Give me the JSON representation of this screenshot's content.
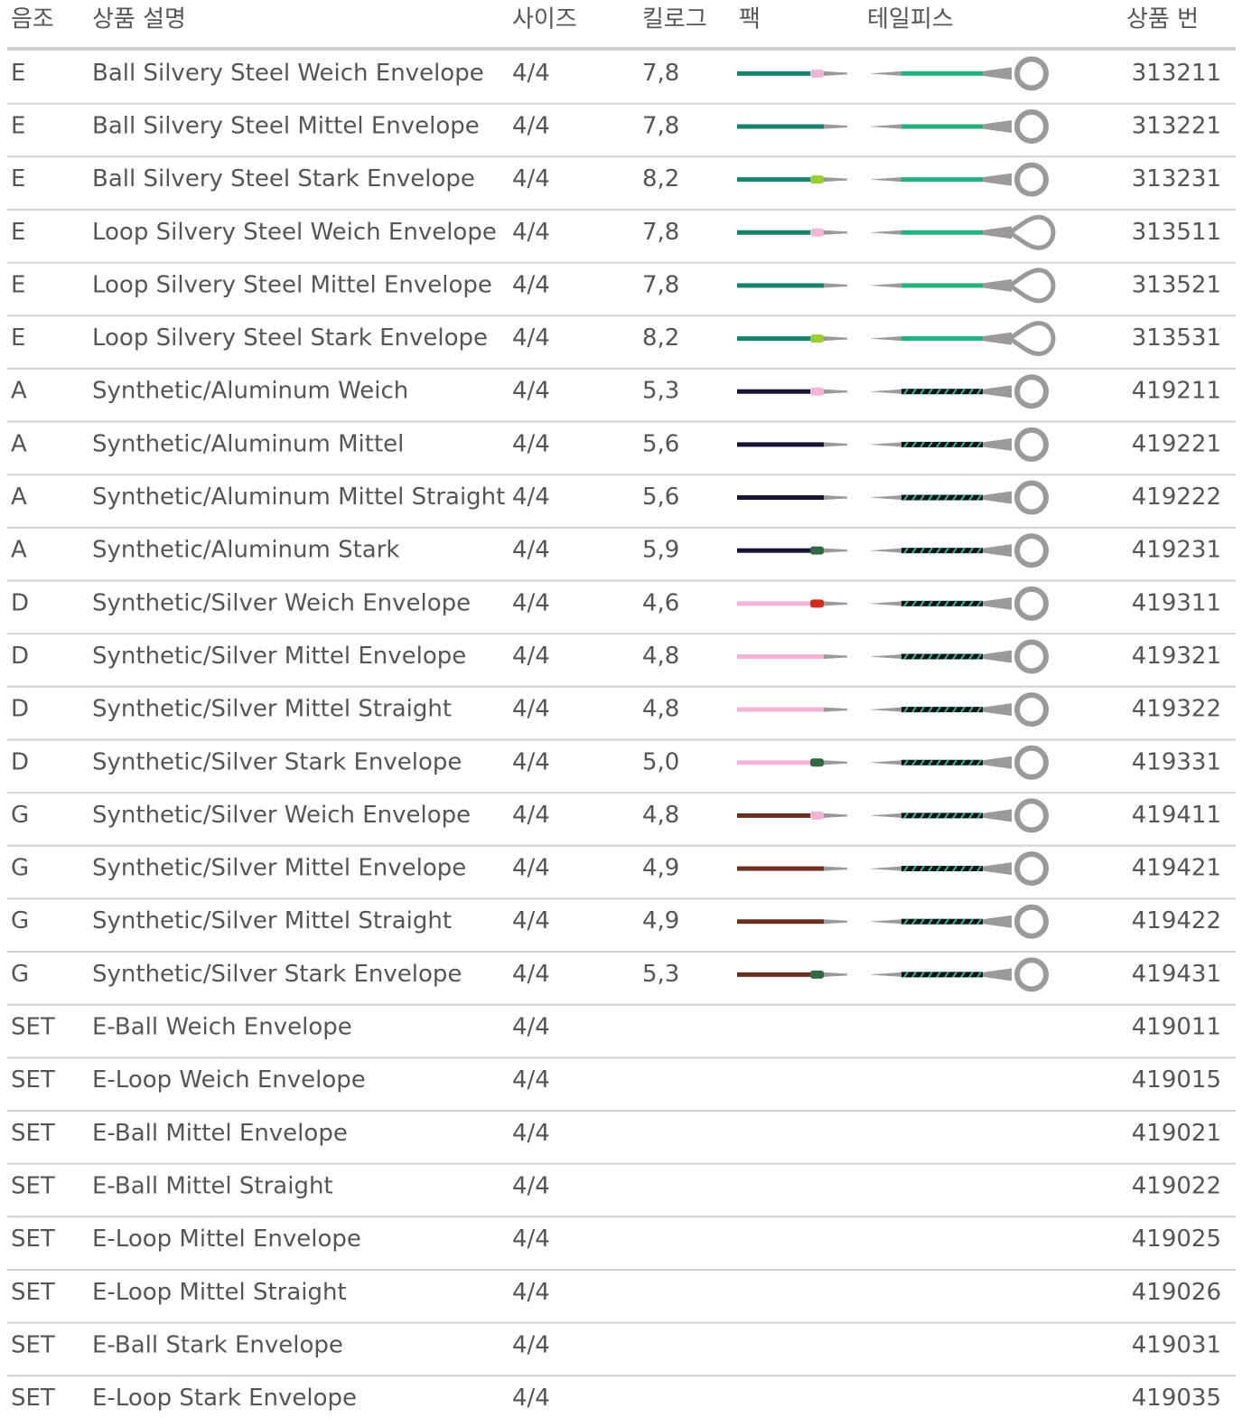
{
  "table": {
    "header": [
      "음조",
      "상품 설명",
      "사이즈",
      "킬로그",
      "팩",
      "테일피스",
      "상품 번"
    ],
    "rows": [
      {
        "tone": "E",
        "description": "Ball Silvery Steel Weich Envelope",
        "size": "4/4",
        "weight": "7,8",
        "number": "313211"
      },
      {
        "tone": "E",
        "description": "Ball Silvery Steel Mittel Envelope",
        "size": "4/4",
        "weight": "7,8",
        "number": "313221"
      },
      {
        "tone": "E",
        "description": "Ball Silvery Steel Stark Envelope",
        "size": "4/4",
        "weight": "8,2",
        "number": "313231"
      },
      {
        "tone": "E",
        "description": "Loop Silvery Steel Weich Envelope",
        "size": "4/4",
        "weight": "7,8",
        "number": "313511"
      },
      {
        "tone": "E",
        "description": "Loop Silvery Steel Mittel Envelope",
        "size": "4/4",
        "weight": "7,8",
        "number": "313521"
      },
      {
        "tone": "E",
        "description": "Loop Silvery Steel Stark Envelope",
        "size": "4/4",
        "weight": "8,2",
        "number": "313531"
      },
      {
        "tone": "A",
        "description": "Synthetic/Aluminum Weich",
        "size": "4/4",
        "weight": "5,3",
        "number": "419211"
      },
      {
        "tone": "A",
        "description": "Synthetic/Aluminum Mittel",
        "size": "4/4",
        "weight": "5,6",
        "number": "419221"
      },
      {
        "tone": "A",
        "description": "Synthetic/Aluminum Mittel Straight",
        "size": "4/4",
        "weight": "5,6",
        "number": "419222"
      },
      {
        "tone": "A",
        "description": "Synthetic/Aluminum Stark",
        "size": "4/4",
        "weight": "5,9",
        "number": "419231"
      },
      {
        "tone": "D",
        "description": "Synthetic/Silver Weich Envelope",
        "size": "4/4",
        "weight": "4,6",
        "number": "419311"
      },
      {
        "tone": "D",
        "description": "Synthetic/Silver Mittel Envelope",
        "size": "4/4",
        "weight": "4,8",
        "number": "419321"
      },
      {
        "tone": "D",
        "description": "Synthetic/Silver Mittel Straight",
        "size": "4/4",
        "weight": "4,8",
        "number": "419322"
      },
      {
        "tone": "D",
        "description": "Synthetic/Silver Stark Envelope",
        "size": "4/4",
        "weight": "5,0",
        "number": "419331"
      },
      {
        "tone": "G",
        "description": "Synthetic/Silver Weich Envelope",
        "size": "4/4",
        "weight": "4,8",
        "number": "419411"
      },
      {
        "tone": "G",
        "description": "Synthetic/Silver Mittel Envelope",
        "size": "4/4",
        "weight": "4,9",
        "number": "419421"
      },
      {
        "tone": "G",
        "description": "Synthetic/Silver Mittel Straight",
        "size": "4/4",
        "weight": "4,9",
        "number": "419422"
      },
      {
        "tone": "G",
        "description": "Synthetic/Silver Stark Envelope",
        "size": "4/4",
        "weight": "5,3",
        "number": "419431"
      },
      {
        "tone": "SET",
        "description": "E-Ball Weich Envelope",
        "size": "4/4",
        "number": "419011"
      },
      {
        "tone": "SET",
        "description": "E-Loop Weich Envelope",
        "size": "4/4",
        "number": "419015"
      },
      {
        "tone": "SET",
        "description": "E-Ball Mittel Envelope",
        "size": "4/4",
        "number": "419021"
      },
      {
        "tone": "SET",
        "description": "E-Ball Mittel Straight",
        "size": "4/4",
        "number": "419022"
      },
      {
        "tone": "SET",
        "description": "E-Loop Mittel Envelope",
        "size": "4/4",
        "number": "419025"
      },
      {
        "tone": "SET",
        "description": "E-Loop Mittel Straight",
        "size": "4/4",
        "number": "419026"
      },
      {
        "tone": "SET",
        "description": "E-Ball Stark Envelope",
        "size": "4/4",
        "number": "419031"
      },
      {
        "tone": "SET",
        "description": "E-Loop Stark Envelope",
        "size": "4/4",
        "number": "419035"
      }
    ]
  }
}
